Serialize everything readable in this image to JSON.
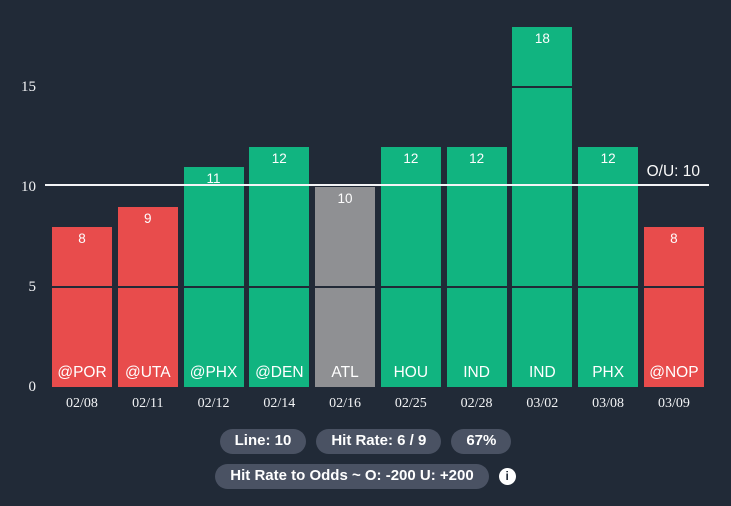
{
  "colors": {
    "background": "#212a37",
    "over_bar": "#11b480",
    "under_bar": "#e84c4c",
    "push_bar": "#8f9093",
    "reference_line": "#f3f4f6",
    "gridline": "#212a37",
    "badge_background": "#4a5263",
    "text": "#ffffff"
  },
  "chart_data": {
    "type": "bar",
    "title": "",
    "xlabel": "",
    "ylabel": "",
    "categories": [
      "@POR",
      "@UTA",
      "@PHX",
      "@DEN",
      "ATL",
      "HOU",
      "IND",
      "IND",
      "PHX",
      "@NOP"
    ],
    "dates": [
      "02/08",
      "02/11",
      "02/12",
      "02/14",
      "02/16",
      "02/25",
      "02/28",
      "03/02",
      "03/08",
      "03/09"
    ],
    "values": [
      8,
      9,
      11,
      12,
      10,
      12,
      12,
      18,
      12,
      8
    ],
    "results": [
      "under",
      "under",
      "over",
      "over",
      "push",
      "over",
      "over",
      "over",
      "over",
      "under"
    ],
    "y_ticks": [
      0,
      5,
      10,
      15
    ],
    "ylim": [
      0,
      19.4
    ],
    "grid_values": [
      5,
      15
    ],
    "grid": true,
    "legend_position": "none",
    "reference_line": {
      "value": 10,
      "label": "O/U: 10"
    }
  },
  "footer": {
    "line_label": "Line: 10",
    "hit_rate_label": "Hit Rate: 6 / 9",
    "pct_label": "67%",
    "odds_label": "Hit Rate to Odds ~ O: -200 U: +200",
    "info_glyph": "i"
  }
}
